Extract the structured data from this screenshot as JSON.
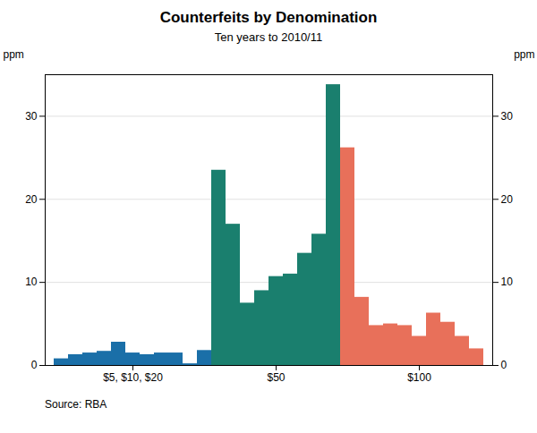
{
  "chart_data": {
    "type": "bar",
    "title": "Counterfeits by Denomination",
    "subtitle": "Ten years to 2010/11",
    "ylabel": "ppm",
    "y2label": "ppm",
    "source": "Source: RBA",
    "categories": [
      null,
      null,
      null,
      null,
      null,
      "$5, $10, $20",
      null,
      null,
      null,
      null,
      null,
      null,
      null,
      null,
      null,
      "$50",
      null,
      null,
      null,
      null,
      null,
      null,
      null,
      null,
      null,
      "$100",
      null,
      null,
      null,
      null
    ],
    "values": [
      0.8,
      1.3,
      1.5,
      1.7,
      2.8,
      1.5,
      1.3,
      1.5,
      1.5,
      0.2,
      1.8,
      23.5,
      17.0,
      7.5,
      9.0,
      10.7,
      11.0,
      13.5,
      15.8,
      33.8,
      26.2,
      8.2,
      4.8,
      5.0,
      4.8,
      3.5,
      6.3,
      5.2,
      3.5,
      2.0
    ],
    "colors": [
      "#1a6fa8",
      "#1a6fa8",
      "#1a6fa8",
      "#1a6fa8",
      "#1a6fa8",
      "#1a6fa8",
      "#1a6fa8",
      "#1a6fa8",
      "#1a6fa8",
      "#1a6fa8",
      "#1a6fa8",
      "#1a7f6e",
      "#1a7f6e",
      "#1a7f6e",
      "#1a7f6e",
      "#1a7f6e",
      "#1a7f6e",
      "#1a7f6e",
      "#1a7f6e",
      "#1a7f6e",
      "#e8705a",
      "#e8705a",
      "#e8705a",
      "#e8705a",
      "#e8705a",
      "#e8705a",
      "#e8705a",
      "#e8705a",
      "#e8705a",
      "#e8705a"
    ],
    "ylim": [
      0,
      35
    ],
    "yticks": [
      0,
      10,
      20,
      30
    ],
    "y2lim": [
      0,
      35
    ],
    "y2ticks": [
      0,
      10,
      20,
      30
    ],
    "grid": true
  }
}
